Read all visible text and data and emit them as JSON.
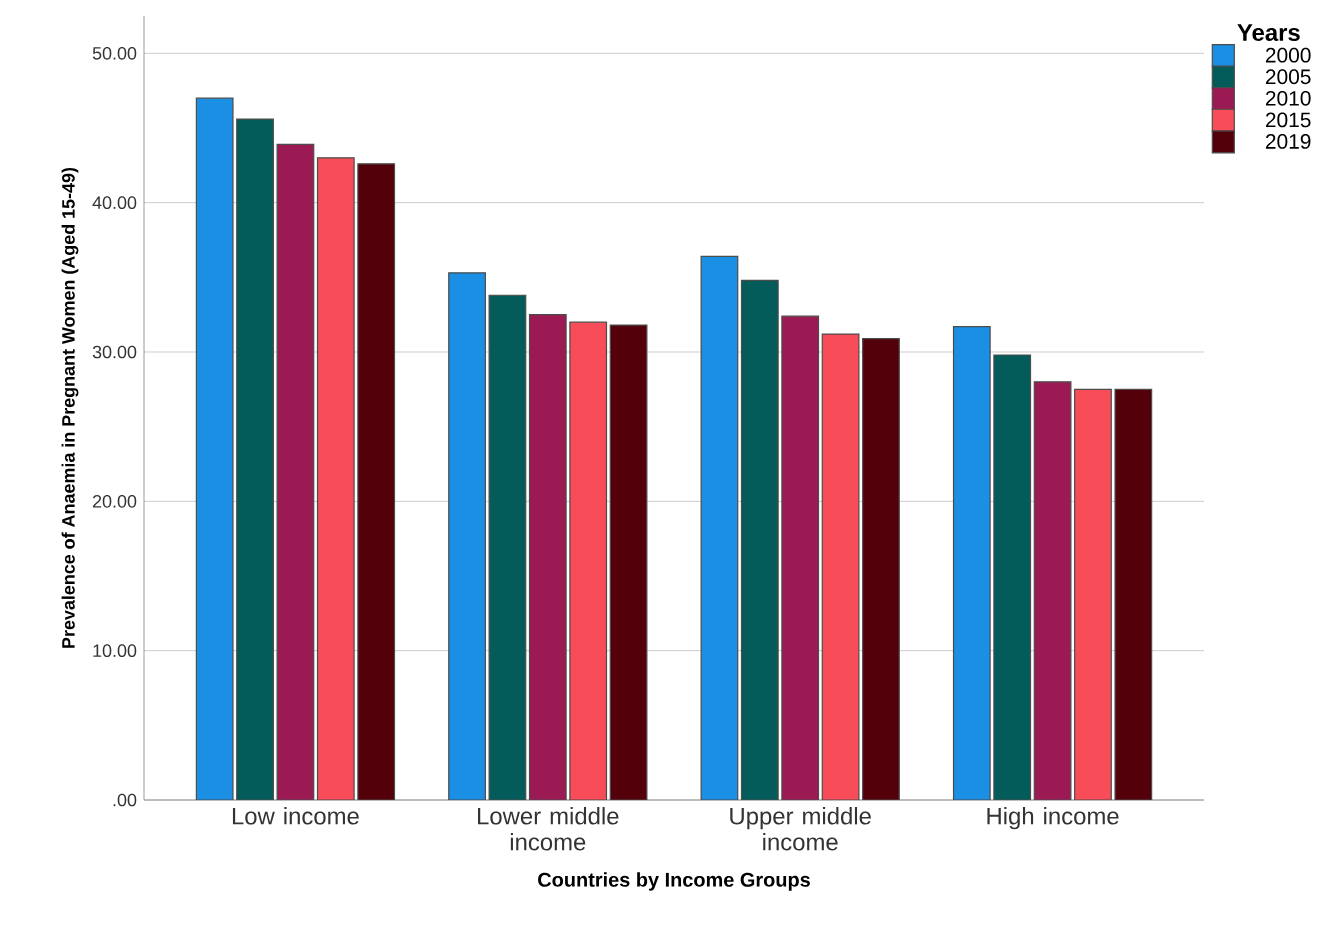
{
  "chart_data": {
    "type": "bar",
    "xlabel": "Countries by Income Groups",
    "ylabel": "Prevalence of Anaemia in Pregnant Women (Aged 15-49)",
    "legend_title": "Years",
    "categories": [
      "Low income",
      "Lower middle income",
      "Upper middle income",
      "High income"
    ],
    "series": [
      {
        "name": "2000",
        "color": "#1a8fe3",
        "values": [
          47.0,
          35.3,
          36.4,
          31.7
        ]
      },
      {
        "name": "2005",
        "color": "#045c5a",
        "values": [
          45.6,
          33.8,
          34.8,
          29.8
        ]
      },
      {
        "name": "2010",
        "color": "#9c1a54",
        "values": [
          43.9,
          32.5,
          32.4,
          28.0
        ]
      },
      {
        "name": "2015",
        "color": "#f84c58",
        "values": [
          43.0,
          32.0,
          31.2,
          27.5
        ]
      },
      {
        "name": "2019",
        "color": "#53000b",
        "values": [
          42.6,
          31.8,
          30.9,
          27.5
        ]
      }
    ],
    "ylim": [
      0,
      52.5
    ],
    "yticks": [
      {
        "value": 0,
        "label": ".00"
      },
      {
        "value": 10,
        "label": "10.00"
      },
      {
        "value": 20,
        "label": "20.00"
      },
      {
        "value": 30,
        "label": "30.00"
      },
      {
        "value": 40,
        "label": "40.00"
      },
      {
        "value": 50,
        "label": "50.00"
      }
    ],
    "grid": "y",
    "legend": "top right"
  }
}
